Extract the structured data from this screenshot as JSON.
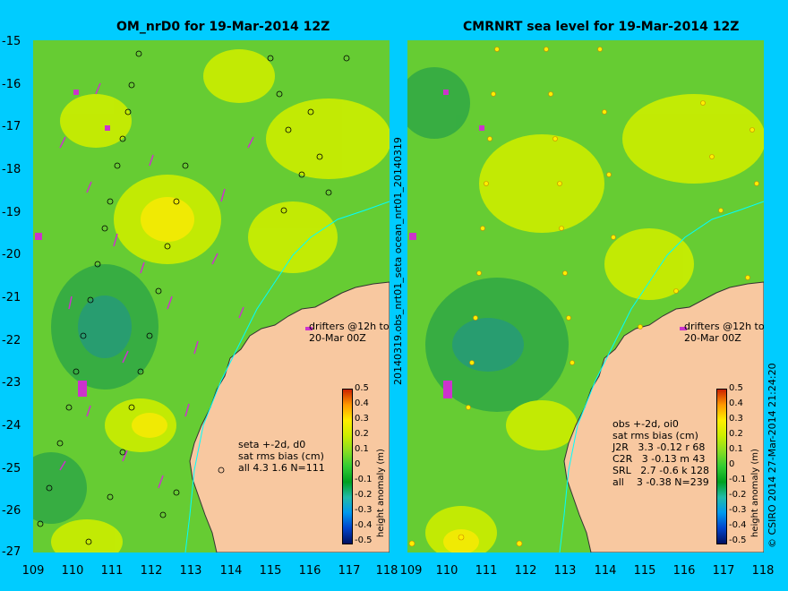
{
  "left": {
    "title": "OM_nrD0 for 19-Mar-2014 12Z",
    "drifters_note": "drifters @12h to\n20-Mar 00Z",
    "stats": "seta +-2d, d0\nsat rms bias (cm)\nall 4.3 1.6 N=111"
  },
  "right": {
    "title": "CMRNRT sea level  for 19-Mar-2014 12Z",
    "drifters_note": "drifters @12h to\n20-Mar 00Z",
    "stats": "obs +-2d, oi0\nsat rms bias (cm)\nJ2R   3.3 -0.12 r 68\nC2R   3 -0.13 m 43\nSRL   2.7 -0.6 k 128\nall    3 -0.38 N=239"
  },
  "middle_label": "20140319.obs_nrt01_seta      ocean_nrt01_20140319",
  "credit": "© CSIRO 2014   27-Mar-2014 21:24:20",
  "axes": {
    "lat_ticks": [
      "-15",
      "-16",
      "-17",
      "-18",
      "-19",
      "-20",
      "-21",
      "-22",
      "-23",
      "-24",
      "-25",
      "-26",
      "-27"
    ],
    "lon_ticks": [
      "109",
      "110",
      "111",
      "112",
      "113",
      "114",
      "115",
      "116",
      "117",
      "118"
    ]
  },
  "colorbar": {
    "label": "height anomaly (m)",
    "ticks": [
      "0.5",
      "0.4",
      "0.3",
      "0.2",
      "0.1",
      "0",
      "-0.1",
      "-0.2",
      "-0.3",
      "-0.4",
      "-0.5"
    ]
  },
  "colors": {
    "background": "#00ccff",
    "land": "#f8c8a0",
    "ocean_base": "#66cc33",
    "drifter": "#cc33cc"
  }
}
